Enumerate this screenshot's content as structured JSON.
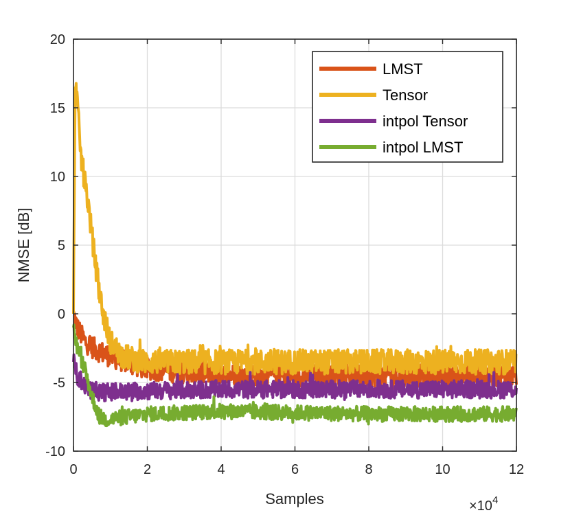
{
  "chart_data": {
    "type": "line",
    "title": "",
    "xlabel": "Samples",
    "ylabel": "NMSE [dB]",
    "x_exponent_label": "×10",
    "x_exponent_power": "4",
    "xlim": [
      0,
      12
    ],
    "ylim": [
      -10,
      20
    ],
    "xticks": [
      "0",
      "2",
      "4",
      "6",
      "8",
      "10",
      "12"
    ],
    "yticks": [
      "-10",
      "-5",
      "0",
      "5",
      "10",
      "15",
      "20"
    ],
    "grid": true,
    "legend_position": "top-right",
    "series": [
      {
        "name": "LMST",
        "color": "#D95319",
        "x": [
          0,
          0.1,
          0.3,
          0.6,
          1.0,
          1.5,
          2.0,
          3.0,
          4.0,
          6.0,
          8.0,
          10.0,
          12.0
        ],
        "y": [
          0,
          -1.0,
          -2.0,
          -2.6,
          -3.1,
          -3.6,
          -4.0,
          -4.3,
          -4.4,
          -4.5,
          -4.5,
          -4.5,
          -4.5
        ],
        "noise": 0.8
      },
      {
        "name": "Tensor",
        "color": "#EDB120",
        "x": [
          0,
          0.05,
          0.2,
          0.4,
          0.6,
          0.8,
          1.0,
          1.3,
          1.6,
          2.0,
          3.0,
          4.0,
          6.0,
          8.0,
          10.0,
          12.0
        ],
        "y": [
          0,
          17.5,
          11.5,
          8.0,
          3.5,
          0.0,
          -2.0,
          -3.0,
          -3.3,
          -3.5,
          -3.5,
          -3.5,
          -3.5,
          -3.5,
          -3.5,
          -3.5
        ],
        "noise": 0.9
      },
      {
        "name": "intpol Tensor",
        "color": "#7E2F8E",
        "x": [
          0,
          0.1,
          0.3,
          0.5,
          0.8,
          1.2,
          2.0,
          4.0,
          6.0,
          8.0,
          10.0,
          12.0
        ],
        "y": [
          -3.5,
          -4.5,
          -5.2,
          -5.6,
          -5.7,
          -5.7,
          -5.6,
          -5.5,
          -5.5,
          -5.5,
          -5.5,
          -5.5
        ],
        "noise": 0.65
      },
      {
        "name": "intpol LMST",
        "color": "#77AC30",
        "x": [
          0,
          0.1,
          0.3,
          0.5,
          0.7,
          0.9,
          1.2,
          2.0,
          4.0,
          6.0,
          8.0,
          10.0,
          12.0
        ],
        "y": [
          -1.0,
          -2.5,
          -4.0,
          -6.0,
          -7.5,
          -7.7,
          -7.6,
          -7.3,
          -7.1,
          -7.2,
          -7.3,
          -7.3,
          -7.3
        ],
        "noise": 0.55
      }
    ]
  }
}
